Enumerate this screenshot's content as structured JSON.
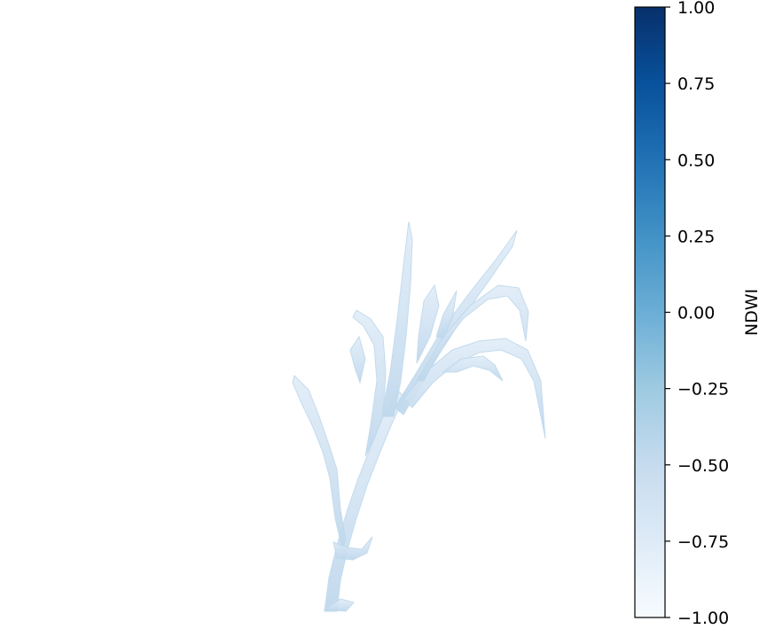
{
  "chart_data": {
    "type": "heatmap",
    "description_note": "",
    "colormap": {
      "name": "Blues",
      "stops": [
        "#f7fbff",
        "#deebf7",
        "#c6dbef",
        "#9ecae1",
        "#6baed6",
        "#4292c6",
        "#2171b5",
        "#08519c",
        "#08306b"
      ]
    },
    "colorbar": {
      "label": "NDWI",
      "range": [
        -1.0,
        1.0
      ],
      "ticks": [
        1.0,
        0.75,
        0.5,
        0.25,
        0.0,
        -0.25,
        -0.5,
        -0.75,
        -1.0
      ],
      "tick_labels": [
        "1.00",
        "0.75",
        "0.50",
        "0.25",
        "0.00",
        "−0.25",
        "−0.50",
        "−0.75",
        "−1.00"
      ]
    },
    "axes_visible": false,
    "plant_ndwi_values": {
      "typical": -0.62,
      "range": [
        -0.78,
        -0.45
      ]
    }
  }
}
